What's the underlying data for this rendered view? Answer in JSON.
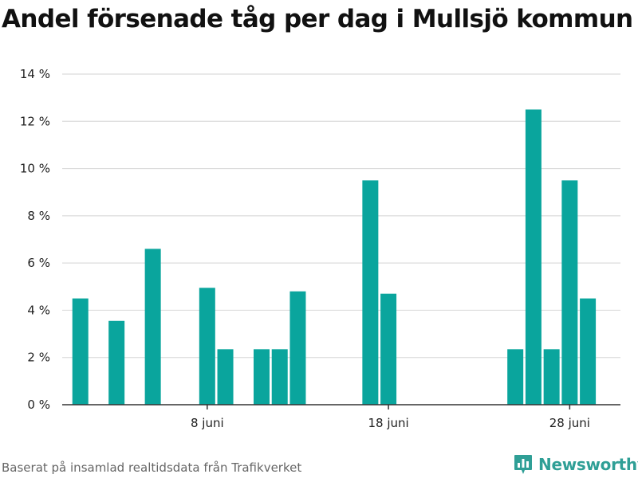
{
  "title": "Andel försenade tåg per dag i Mullsjö kommun",
  "footer": {
    "source": "Baserat på insamlad realtidsdata från Trafikverket",
    "brand": "Newsworthy",
    "brand_icon": "bar-chart-chat-icon"
  },
  "colors": {
    "bar": "#0aa59d",
    "grid": "#dcdcdc",
    "axis": "#333333",
    "brand": "#2f9f96"
  },
  "chart_data": {
    "type": "bar",
    "title": "Andel försenade tåg per dag i Mullsjö kommun",
    "x_unit": "day of June",
    "x": [
      1,
      3,
      5,
      8,
      9,
      11,
      12,
      13,
      17,
      18,
      25,
      26,
      27,
      28,
      29
    ],
    "values": [
      4.5,
      3.55,
      6.6,
      4.95,
      2.35,
      2.35,
      2.35,
      4.8,
      9.5,
      4.7,
      2.35,
      12.5,
      2.35,
      9.5,
      4.5
    ],
    "xlim": [
      0,
      30.8
    ],
    "ylim": [
      0,
      14
    ],
    "yticks": [
      0,
      2,
      4,
      6,
      8,
      10,
      12,
      14
    ],
    "ytick_labels": [
      "0 %",
      "2 %",
      "4 %",
      "6 %",
      "8 %",
      "10 %",
      "12 %",
      "14 %"
    ],
    "xticks": [
      8,
      18,
      28
    ],
    "xtick_labels": [
      "8 juni",
      "18 juni",
      "28 juni"
    ],
    "grid": true,
    "xlabel": "",
    "ylabel": ""
  }
}
